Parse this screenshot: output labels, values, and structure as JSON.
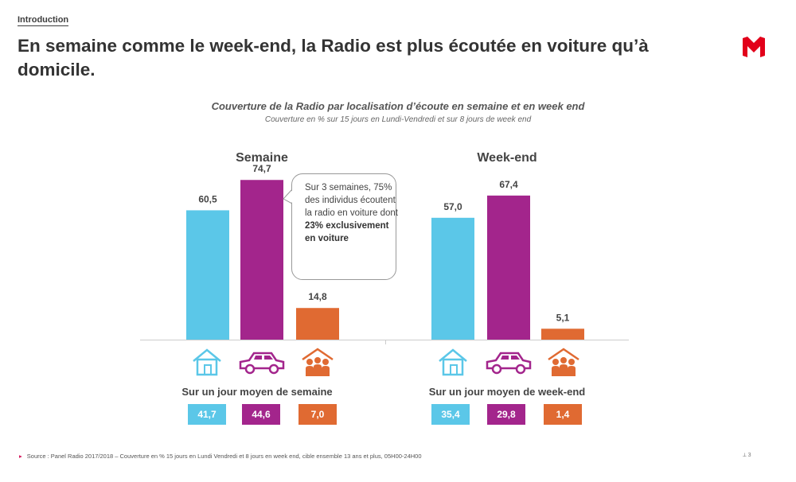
{
  "section_label": "Introduction",
  "headline": "En semaine comme le week-end, la Radio est plus écoutée en voiture qu’à domicile.",
  "chart_data": {
    "type": "bar",
    "title": "Couverture de la Radio par localisation d’écoute en semaine et en week end",
    "subtitle": "Couverture en % sur 15 jours en Lundi-Vendredi et sur 8 jours de week end",
    "panels": [
      {
        "title": "Semaine",
        "categories": [
          "domicile",
          "voiture",
          "autre lieu"
        ],
        "values": [
          60.5,
          74.7,
          14.8
        ],
        "value_labels": [
          "60,5",
          "74,7",
          "14,8"
        ],
        "daily_label": "Sur un jour moyen de semaine",
        "daily_values": [
          41.7,
          44.6,
          7.0
        ],
        "daily_value_labels": [
          "41,7",
          "44,6",
          "7,0"
        ]
      },
      {
        "title": "Week-end",
        "categories": [
          "domicile",
          "voiture",
          "autre lieu"
        ],
        "values": [
          57.0,
          67.4,
          5.1
        ],
        "value_labels": [
          "57,0",
          "67,4",
          "5,1"
        ],
        "daily_label": "Sur un jour moyen de week-end",
        "daily_values": [
          35.4,
          29.8,
          1.4
        ],
        "daily_value_labels": [
          "35,4",
          "29,8",
          "1,4"
        ]
      }
    ],
    "ylim": [
      0,
      80
    ],
    "colors": [
      "#5bc7e8",
      "#a3258c",
      "#e06a32"
    ],
    "icons": [
      "house-icon",
      "car-icon",
      "people-icon"
    ]
  },
  "callout": {
    "line1": "Sur 3 semaines, 75% des individus écoutent la radio en voiture dont",
    "bold": "23% exclusivement en voiture"
  },
  "source": "Source : Panel Radio 2017/2018 – Couverture en % 15 jours en Lundi Vendredi et 8 jours en week end, cible ensemble 13 ans et plus, 05H00-24H00",
  "page_number": "3",
  "brand_color": "#e2001a"
}
